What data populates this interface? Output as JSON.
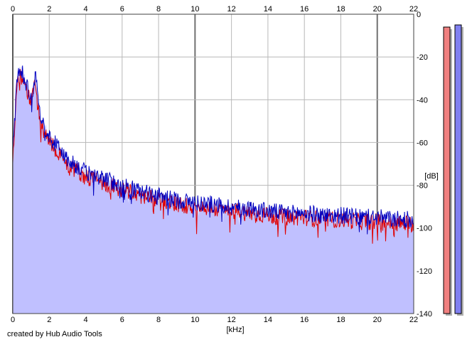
{
  "credit": "created by Hub Audio Tools",
  "chart_data": {
    "type": "area",
    "xlabel": "[kHz]",
    "ylabel": "[dB]",
    "xlim": [
      0,
      22
    ],
    "ylim": [
      -140,
      0
    ],
    "x_ticks": [
      0,
      2,
      4,
      6,
      8,
      10,
      12,
      14,
      16,
      18,
      20,
      22
    ],
    "y_ticks": [
      0,
      -20,
      -40,
      -60,
      -80,
      -100,
      -120,
      -140
    ],
    "grid": true,
    "x": [
      0,
      0.25,
      0.5,
      0.75,
      1,
      1.25,
      1.5,
      2,
      2.5,
      3,
      3.5,
      4,
      5,
      6,
      7,
      8,
      9,
      10,
      11,
      12,
      13,
      14,
      15,
      16,
      17,
      18,
      19,
      20,
      21,
      22
    ],
    "series": [
      {
        "color": "#e00000",
        "values": [
          -70,
          -30,
          -28,
          -36,
          -40,
          -33,
          -50,
          -60,
          -64,
          -70,
          -73,
          -76,
          -79,
          -82,
          -85,
          -87,
          -89,
          -90,
          -91,
          -92,
          -93,
          -94,
          -95,
          -95,
          -96,
          -96,
          -97,
          -97,
          -98,
          -98
        ]
      },
      {
        "color": "#0000c0",
        "values": [
          -65,
          -28,
          -26,
          -33,
          -38,
          -30,
          -48,
          -58,
          -62,
          -68,
          -71,
          -74,
          -77,
          -80,
          -83,
          -85,
          -87,
          -88,
          -89,
          -90,
          -91,
          -92,
          -93,
          -93,
          -94,
          -94,
          -95,
          -95,
          -96,
          -96
        ]
      }
    ],
    "fill_color": "#c0c0ff",
    "level_meters": [
      {
        "color": "#f08080",
        "value": -6
      },
      {
        "color": "#8080f0",
        "value": -5
      }
    ]
  }
}
